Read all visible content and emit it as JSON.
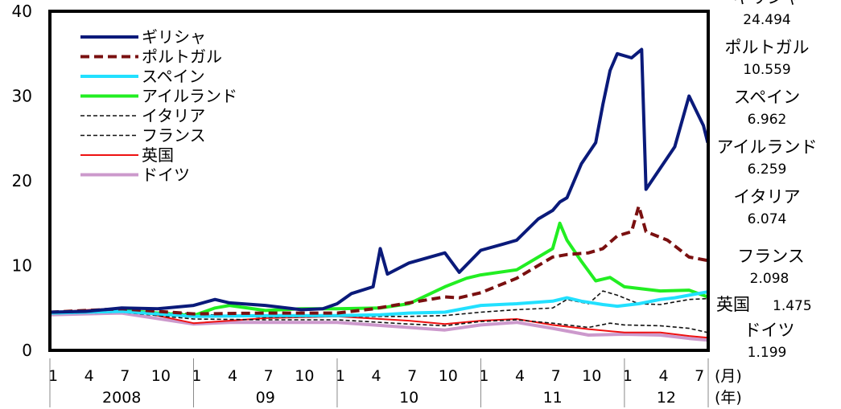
{
  "chart_data": {
    "type": "line",
    "title": "",
    "xlabel": "",
    "ylabel": "",
    "ylim": [
      0,
      40
    ],
    "y_ticks": [
      "0",
      "10",
      "20",
      "30",
      "40"
    ],
    "x_unit_month": "(月)",
    "x_unit_year": "(年)",
    "x_month_ticks": [
      "1",
      "4",
      "7",
      "10",
      "1",
      "4",
      "7",
      "10",
      "1",
      "4",
      "7",
      "10",
      "1",
      "4",
      "7",
      "10",
      "1",
      "4",
      "7"
    ],
    "x_years": [
      "2008",
      "09",
      "10",
      "11",
      "12"
    ],
    "legend_position": "top-left",
    "grid": false,
    "series": [
      {
        "name": "ギリシャ",
        "last_value": "24.494",
        "color": "#0a1a7a",
        "style": "solid-thick",
        "points": [
          [
            2008.0,
            4.5
          ],
          [
            2008.25,
            4.6
          ],
          [
            2008.5,
            5.0
          ],
          [
            2008.75,
            4.9
          ],
          [
            2009.0,
            5.3
          ],
          [
            2009.15,
            6.0
          ],
          [
            2009.25,
            5.6
          ],
          [
            2009.5,
            5.3
          ],
          [
            2009.75,
            4.8
          ],
          [
            2009.9,
            4.9
          ],
          [
            2010.0,
            5.5
          ],
          [
            2010.1,
            6.7
          ],
          [
            2010.25,
            7.5
          ],
          [
            2010.3,
            12.0
          ],
          [
            2010.35,
            9.0
          ],
          [
            2010.5,
            10.3
          ],
          [
            2010.75,
            11.5
          ],
          [
            2010.85,
            9.2
          ],
          [
            2011.0,
            11.8
          ],
          [
            2011.15,
            12.5
          ],
          [
            2011.25,
            13.0
          ],
          [
            2011.4,
            15.5
          ],
          [
            2011.5,
            16.5
          ],
          [
            2011.55,
            17.5
          ],
          [
            2011.6,
            18.0
          ],
          [
            2011.7,
            22.0
          ],
          [
            2011.8,
            24.5
          ],
          [
            2011.85,
            29.0
          ],
          [
            2011.9,
            33.0
          ],
          [
            2011.95,
            35.0
          ],
          [
            2012.05,
            34.5
          ],
          [
            2012.12,
            35.5
          ],
          [
            2012.15,
            19.0
          ],
          [
            2012.25,
            21.5
          ],
          [
            2012.35,
            24.0
          ],
          [
            2012.45,
            30.0
          ],
          [
            2012.55,
            26.5
          ],
          [
            2012.58,
            24.5
          ]
        ]
      },
      {
        "name": "ポルトガル",
        "last_value": "10.559",
        "color": "#7a1010",
        "style": "dashed-thick",
        "points": [
          [
            2008.0,
            4.5
          ],
          [
            2008.5,
            4.9
          ],
          [
            2009.0,
            4.3
          ],
          [
            2009.5,
            4.4
          ],
          [
            2010.0,
            4.4
          ],
          [
            2010.25,
            4.9
          ],
          [
            2010.5,
            5.6
          ],
          [
            2010.75,
            6.3
          ],
          [
            2010.85,
            6.2
          ],
          [
            2011.0,
            6.8
          ],
          [
            2011.25,
            8.5
          ],
          [
            2011.5,
            11.0
          ],
          [
            2011.6,
            11.3
          ],
          [
            2011.75,
            11.5
          ],
          [
            2011.85,
            12.0
          ],
          [
            2011.95,
            13.5
          ],
          [
            2012.05,
            14.0
          ],
          [
            2012.1,
            17.0
          ],
          [
            2012.15,
            14.0
          ],
          [
            2012.3,
            13.0
          ],
          [
            2012.45,
            11.0
          ],
          [
            2012.58,
            10.6
          ]
        ]
      },
      {
        "name": "スペイン",
        "last_value": "6.962",
        "color": "#22e0ff",
        "style": "solid-thick",
        "points": [
          [
            2008.0,
            4.4
          ],
          [
            2008.5,
            4.6
          ],
          [
            2009.0,
            4.0
          ],
          [
            2009.5,
            4.1
          ],
          [
            2010.0,
            4.1
          ],
          [
            2010.3,
            4.2
          ],
          [
            2010.5,
            4.4
          ],
          [
            2010.75,
            4.5
          ],
          [
            2011.0,
            5.3
          ],
          [
            2011.25,
            5.5
          ],
          [
            2011.5,
            5.8
          ],
          [
            2011.6,
            6.2
          ],
          [
            2011.7,
            5.8
          ],
          [
            2011.85,
            5.4
          ],
          [
            2011.95,
            5.2
          ],
          [
            2012.1,
            5.5
          ],
          [
            2012.25,
            6.0
          ],
          [
            2012.35,
            6.2
          ],
          [
            2012.45,
            6.5
          ],
          [
            2012.58,
            6.9
          ]
        ]
      },
      {
        "name": "アイルランド",
        "last_value": "6.259",
        "color": "#22ee22",
        "style": "solid-thick",
        "points": [
          [
            2008.0,
            4.4
          ],
          [
            2008.5,
            4.7
          ],
          [
            2009.0,
            4.1
          ],
          [
            2009.15,
            5.0
          ],
          [
            2009.25,
            5.3
          ],
          [
            2009.5,
            4.7
          ],
          [
            2009.75,
            4.9
          ],
          [
            2010.0,
            4.9
          ],
          [
            2010.3,
            5.0
          ],
          [
            2010.5,
            5.5
          ],
          [
            2010.75,
            7.5
          ],
          [
            2010.9,
            8.5
          ],
          [
            2011.0,
            8.9
          ],
          [
            2011.25,
            9.5
          ],
          [
            2011.5,
            12.0
          ],
          [
            2011.55,
            15.0
          ],
          [
            2011.6,
            13.0
          ],
          [
            2011.7,
            10.5
          ],
          [
            2011.8,
            8.2
          ],
          [
            2011.9,
            8.6
          ],
          [
            2012.0,
            7.5
          ],
          [
            2012.25,
            7.0
          ],
          [
            2012.45,
            7.1
          ],
          [
            2012.58,
            6.3
          ]
        ]
      },
      {
        "name": "イタリア",
        "last_value": "6.074",
        "color": "#111111",
        "style": "dashed-thin",
        "points": [
          [
            2008.0,
            4.4
          ],
          [
            2008.5,
            4.7
          ],
          [
            2009.0,
            4.3
          ],
          [
            2009.5,
            3.9
          ],
          [
            2010.0,
            4.0
          ],
          [
            2010.5,
            4.0
          ],
          [
            2010.75,
            4.1
          ],
          [
            2011.0,
            4.5
          ],
          [
            2011.25,
            4.8
          ],
          [
            2011.5,
            5.0
          ],
          [
            2011.6,
            6.0
          ],
          [
            2011.75,
            5.5
          ],
          [
            2011.85,
            7.0
          ],
          [
            2011.95,
            6.5
          ],
          [
            2012.1,
            5.5
          ],
          [
            2012.25,
            5.4
          ],
          [
            2012.45,
            6.0
          ],
          [
            2012.58,
            6.1
          ]
        ]
      },
      {
        "name": "フランス",
        "last_value": "2.098",
        "color": "#111111",
        "style": "dashed-thin",
        "points": [
          [
            2008.0,
            4.3
          ],
          [
            2008.5,
            4.5
          ],
          [
            2009.0,
            3.7
          ],
          [
            2009.5,
            3.6
          ],
          [
            2010.0,
            3.6
          ],
          [
            2010.5,
            3.1
          ],
          [
            2010.75,
            2.9
          ],
          [
            2011.0,
            3.4
          ],
          [
            2011.25,
            3.6
          ],
          [
            2011.5,
            3.2
          ],
          [
            2011.6,
            3.0
          ],
          [
            2011.75,
            2.7
          ],
          [
            2011.9,
            3.2
          ],
          [
            2012.0,
            3.0
          ],
          [
            2012.25,
            2.9
          ],
          [
            2012.45,
            2.6
          ],
          [
            2012.58,
            2.1
          ]
        ]
      },
      {
        "name": "英国",
        "last_value": "1.475",
        "color": "#ee1111",
        "style": "solid-thin",
        "points": [
          [
            2008.0,
            4.5
          ],
          [
            2008.5,
            5.0
          ],
          [
            2009.0,
            3.2
          ],
          [
            2009.25,
            3.5
          ],
          [
            2009.5,
            3.8
          ],
          [
            2010.0,
            4.0
          ],
          [
            2010.5,
            3.5
          ],
          [
            2010.75,
            3.1
          ],
          [
            2011.0,
            3.5
          ],
          [
            2011.25,
            3.7
          ],
          [
            2011.5,
            3.0
          ],
          [
            2011.75,
            2.5
          ],
          [
            2012.0,
            2.1
          ],
          [
            2012.25,
            2.1
          ],
          [
            2012.45,
            1.7
          ],
          [
            2012.58,
            1.5
          ]
        ]
      },
      {
        "name": "ドイツ",
        "last_value": "1.199",
        "color": "#cc99cc",
        "style": "solid-thick",
        "points": [
          [
            2008.0,
            4.2
          ],
          [
            2008.5,
            4.4
          ],
          [
            2009.0,
            3.1
          ],
          [
            2009.25,
            3.3
          ],
          [
            2009.5,
            3.3
          ],
          [
            2010.0,
            3.3
          ],
          [
            2010.5,
            2.7
          ],
          [
            2010.75,
            2.4
          ],
          [
            2011.0,
            3.0
          ],
          [
            2011.25,
            3.3
          ],
          [
            2011.5,
            2.6
          ],
          [
            2011.75,
            1.8
          ],
          [
            2012.0,
            1.9
          ],
          [
            2012.25,
            1.8
          ],
          [
            2012.45,
            1.4
          ],
          [
            2012.58,
            1.2
          ]
        ]
      }
    ]
  }
}
